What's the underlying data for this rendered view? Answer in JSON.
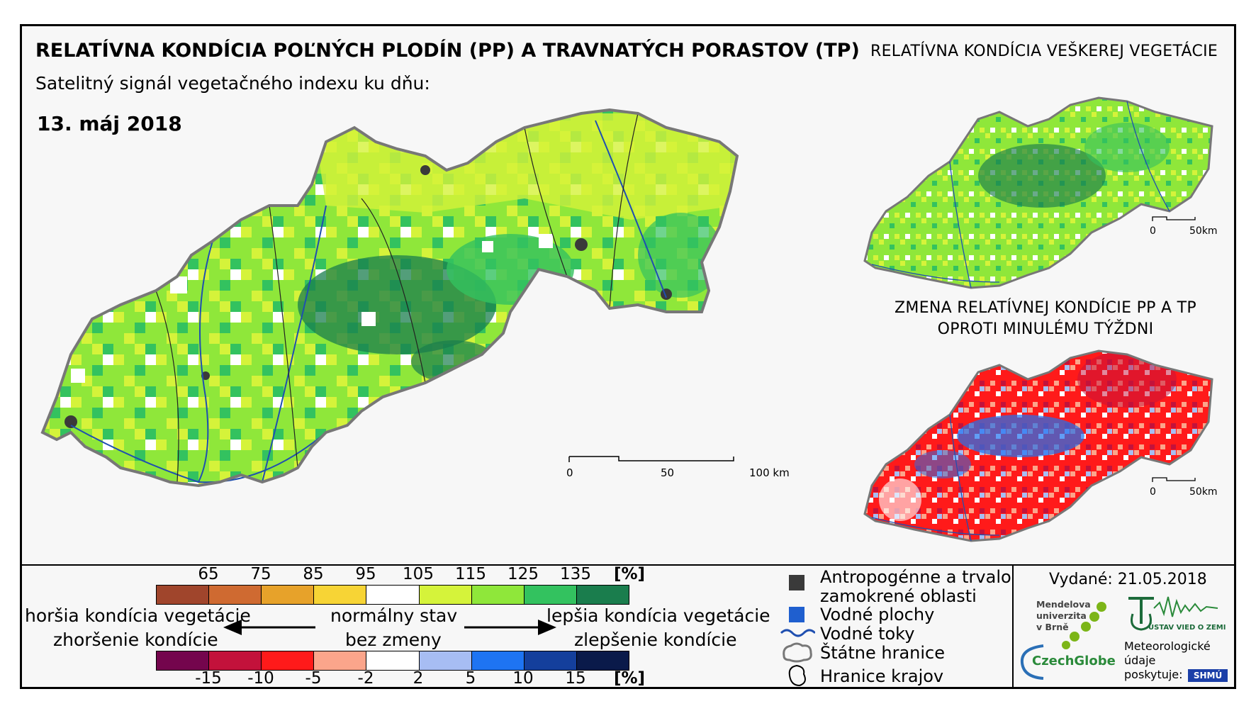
{
  "header": {
    "title": "RELATÍVNA KONDÍCIA POĽNÝCH PLODÍN (PP) A TRAVNATÝCH PORASTOV (TP)",
    "title_right": "RELATÍVNA KONDÍCIA VEŠKEREJ VEGETÁCIE",
    "subtitle": "Satelitný signál vegetačného indexu ku dňu:",
    "date": "13. máj 2018"
  },
  "main_map": {
    "scale": [
      "0",
      "50",
      "100 km"
    ]
  },
  "inset_all_vegetation": {
    "scale": [
      "0",
      "50km"
    ]
  },
  "inset_change": {
    "title_line1": "ZMENA RELATÍVNEJ KONDÍCIE PP A TP",
    "title_line2": "OPROTI MINULÉMU TÝŽDNI",
    "scale": [
      "0",
      "50km"
    ]
  },
  "legend": {
    "condition_ticks": [
      "65",
      "75",
      "85",
      "95",
      "105",
      "115",
      "125",
      "135"
    ],
    "condition_unit": "[%]",
    "condition_colors": [
      "#a0452c",
      "#cf6a31",
      "#e7a22a",
      "#f7d435",
      "#ffffff",
      "#d5f33a",
      "#8fe73a",
      "#33c25f",
      "#1a7d4d"
    ],
    "change_ticks": [
      "-15",
      "-10",
      "-5",
      "-2",
      "2",
      "5",
      "10",
      "15"
    ],
    "change_unit": "[%]",
    "change_colors": [
      "#74054d",
      "#c3123b",
      "#ff1a1a",
      "#fba58b",
      "#ffffff",
      "#a7bdf3",
      "#1e74f2",
      "#143f9c",
      "#0a1a4a"
    ],
    "worse_line1": "horšia kondícia vegetácie",
    "worse_line2": "zhoršenie kondície",
    "normal_line1": "normálny stav",
    "normal_line2": "bez zmeny",
    "better_line1": "lepšia kondícia vegetácie",
    "better_line2": "zlepšenie kondície",
    "items": {
      "anthropogenic_line1": "Antropogénne a trvalo",
      "anthropogenic_line2": "zamokrené oblasti",
      "water_bodies": "Vodné plochy",
      "rivers": "Vodné toky",
      "state_borders": "Štátne hranice",
      "region_borders": "Hranice krajov"
    },
    "issued": "Vydané: 21.05.2018",
    "mendel_line1": "Mendelova",
    "mendel_line2": "univerzita",
    "mendel_line3": "v Brně",
    "czechglobe": "CzechGlobe",
    "uvoz": "ÚSTAV VIED O ZEMI",
    "provided_line1": "Meteorologické",
    "provided_line2": "údaje",
    "provided_line3": "poskytuje:",
    "shmu": "SHMÚ"
  }
}
